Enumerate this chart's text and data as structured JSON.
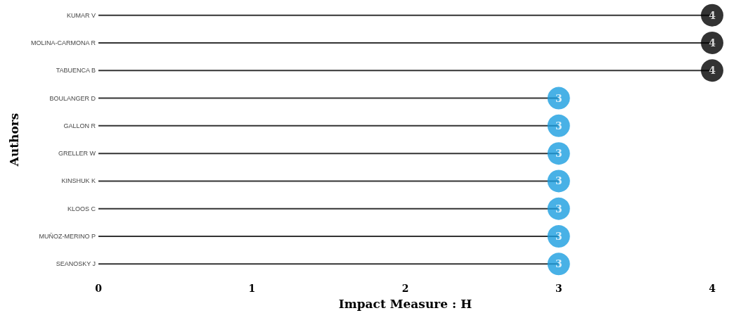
{
  "chart_data": {
    "type": "lollipop",
    "orientation": "horizontal",
    "xlabel": "Impact Measure : H",
    "ylabel": "Authors",
    "categories": [
      "KUMAR V",
      "MOLINA-CARMONA R",
      "TABUENCA B",
      "BOULANGER D",
      "GALLON R",
      "GRELLER W",
      "KINSHUK K",
      "KLOOS C",
      "MUÑOZ-MERINO P",
      "SEANOSKY J"
    ],
    "values": [
      4,
      4,
      4,
      3,
      3,
      3,
      3,
      3,
      3,
      3
    ],
    "colors": [
      "#000000",
      "#000000",
      "#000000",
      "#1a9de0",
      "#1a9de0",
      "#1a9de0",
      "#1a9de0",
      "#1a9de0",
      "#1a9de0",
      "#1a9de0"
    ],
    "xlim": [
      0,
      4
    ],
    "xticks": [
      0,
      1,
      2,
      3,
      4
    ],
    "data_labels": true,
    "grid": false
  }
}
